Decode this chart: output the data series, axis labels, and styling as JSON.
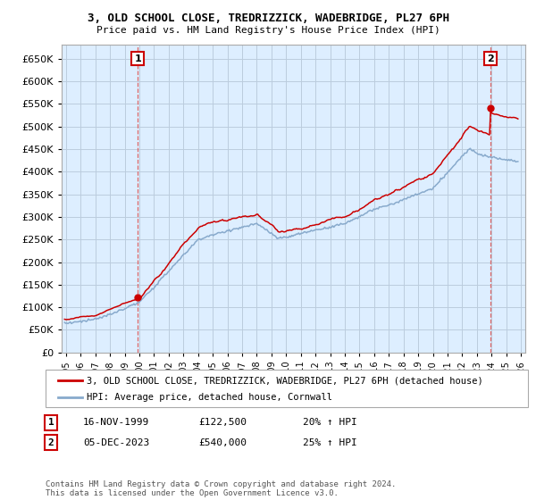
{
  "title1": "3, OLD SCHOOL CLOSE, TREDRIZZICK, WADEBRIDGE, PL27 6PH",
  "title2": "Price paid vs. HM Land Registry's House Price Index (HPI)",
  "legend_line1": "3, OLD SCHOOL CLOSE, TREDRIZZICK, WADEBRIDGE, PL27 6PH (detached house)",
  "legend_line2": "HPI: Average price, detached house, Cornwall",
  "annotation1_date": "16-NOV-1999",
  "annotation1_price": "£122,500",
  "annotation1_hpi": "20% ↑ HPI",
  "annotation2_date": "05-DEC-2023",
  "annotation2_price": "£540,000",
  "annotation2_hpi": "25% ↑ HPI",
  "footer": "Contains HM Land Registry data © Crown copyright and database right 2024.\nThis data is licensed under the Open Government Licence v3.0.",
  "red_color": "#cc0000",
  "blue_color": "#88aacc",
  "vline_color": "#dd6666",
  "chart_bg": "#ddeeff",
  "background_color": "#ffffff",
  "grid_color": "#bbccdd",
  "ylim": [
    0,
    680000
  ],
  "yticks": [
    0,
    50000,
    100000,
    150000,
    200000,
    250000,
    300000,
    350000,
    400000,
    450000,
    500000,
    550000,
    600000,
    650000
  ],
  "xlim_start": 1994.7,
  "xlim_end": 2026.3,
  "t1": 1999.88,
  "p1": 122500,
  "t2": 2023.92,
  "p2": 540000
}
